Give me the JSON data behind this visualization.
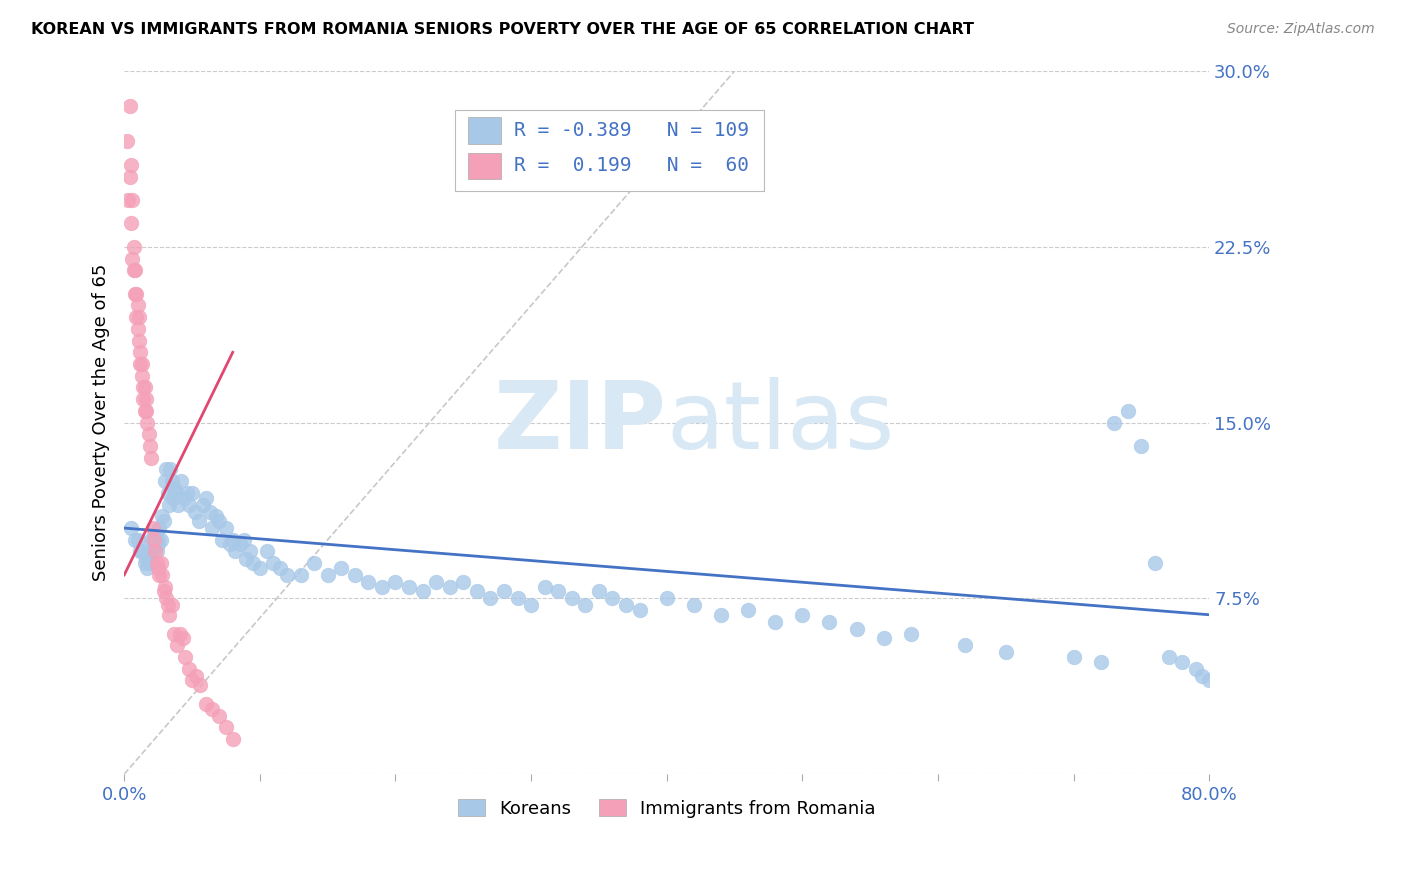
{
  "title": "KOREAN VS IMMIGRANTS FROM ROMANIA SENIORS POVERTY OVER THE AGE OF 65 CORRELATION CHART",
  "source": "Source: ZipAtlas.com",
  "ylabel": "Seniors Poverty Over the Age of 65",
  "xlim": [
    0.0,
    0.8
  ],
  "ylim": [
    0.0,
    0.3
  ],
  "xticks": [
    0.0,
    0.1,
    0.2,
    0.3,
    0.4,
    0.5,
    0.6,
    0.7,
    0.8
  ],
  "xticklabels": [
    "0.0%",
    "",
    "",
    "",
    "",
    "",
    "",
    "",
    "80.0%"
  ],
  "yticks": [
    0.0,
    0.075,
    0.15,
    0.225,
    0.3
  ],
  "yticklabels": [
    "",
    "7.5%",
    "15.0%",
    "22.5%",
    "30.0%"
  ],
  "korean_R": -0.389,
  "korean_N": 109,
  "romania_R": 0.199,
  "romania_N": 60,
  "korean_color": "#a8c8e8",
  "romania_color": "#f4a0b8",
  "korean_line_color": "#4472c4",
  "romania_line_color": "#e04870",
  "watermark_color": "#d8e8f4",
  "legend_label_korean": "Koreans",
  "legend_label_romania": "Immigrants from Romania",
  "korean_scatter_x": [
    0.005,
    0.008,
    0.01,
    0.012,
    0.013,
    0.015,
    0.016,
    0.017,
    0.018,
    0.019,
    0.02,
    0.02,
    0.021,
    0.022,
    0.023,
    0.024,
    0.025,
    0.025,
    0.026,
    0.027,
    0.028,
    0.029,
    0.03,
    0.031,
    0.032,
    0.033,
    0.034,
    0.035,
    0.036,
    0.037,
    0.038,
    0.04,
    0.042,
    0.044,
    0.046,
    0.048,
    0.05,
    0.052,
    0.055,
    0.058,
    0.06,
    0.063,
    0.065,
    0.068,
    0.07,
    0.072,
    0.075,
    0.078,
    0.08,
    0.082,
    0.085,
    0.088,
    0.09,
    0.093,
    0.095,
    0.1,
    0.105,
    0.11,
    0.115,
    0.12,
    0.13,
    0.14,
    0.15,
    0.16,
    0.17,
    0.18,
    0.19,
    0.2,
    0.21,
    0.22,
    0.23,
    0.24,
    0.25,
    0.26,
    0.27,
    0.28,
    0.29,
    0.3,
    0.31,
    0.32,
    0.33,
    0.34,
    0.35,
    0.36,
    0.37,
    0.38,
    0.4,
    0.42,
    0.44,
    0.46,
    0.48,
    0.5,
    0.52,
    0.54,
    0.56,
    0.58,
    0.62,
    0.65,
    0.7,
    0.72,
    0.73,
    0.74,
    0.75,
    0.76,
    0.77,
    0.78,
    0.79,
    0.795,
    0.8
  ],
  "korean_scatter_y": [
    0.105,
    0.1,
    0.1,
    0.095,
    0.095,
    0.09,
    0.092,
    0.088,
    0.093,
    0.09,
    0.095,
    0.1,
    0.1,
    0.102,
    0.098,
    0.095,
    0.1,
    0.098,
    0.105,
    0.1,
    0.11,
    0.108,
    0.125,
    0.13,
    0.12,
    0.115,
    0.13,
    0.125,
    0.118,
    0.122,
    0.12,
    0.115,
    0.125,
    0.118,
    0.12,
    0.115,
    0.12,
    0.112,
    0.108,
    0.115,
    0.118,
    0.112,
    0.105,
    0.11,
    0.108,
    0.1,
    0.105,
    0.098,
    0.1,
    0.095,
    0.098,
    0.1,
    0.092,
    0.095,
    0.09,
    0.088,
    0.095,
    0.09,
    0.088,
    0.085,
    0.085,
    0.09,
    0.085,
    0.088,
    0.085,
    0.082,
    0.08,
    0.082,
    0.08,
    0.078,
    0.082,
    0.08,
    0.082,
    0.078,
    0.075,
    0.078,
    0.075,
    0.072,
    0.08,
    0.078,
    0.075,
    0.072,
    0.078,
    0.075,
    0.072,
    0.07,
    0.075,
    0.072,
    0.068,
    0.07,
    0.065,
    0.068,
    0.065,
    0.062,
    0.058,
    0.06,
    0.055,
    0.052,
    0.05,
    0.048,
    0.15,
    0.155,
    0.14,
    0.09,
    0.05,
    0.048,
    0.045,
    0.042,
    0.04
  ],
  "romania_scatter_x": [
    0.002,
    0.003,
    0.004,
    0.004,
    0.005,
    0.005,
    0.006,
    0.006,
    0.007,
    0.007,
    0.008,
    0.008,
    0.009,
    0.009,
    0.01,
    0.01,
    0.011,
    0.011,
    0.012,
    0.012,
    0.013,
    0.013,
    0.014,
    0.014,
    0.015,
    0.015,
    0.016,
    0.016,
    0.017,
    0.018,
    0.019,
    0.02,
    0.021,
    0.022,
    0.023,
    0.024,
    0.025,
    0.026,
    0.027,
    0.028,
    0.029,
    0.03,
    0.031,
    0.032,
    0.033,
    0.035,
    0.037,
    0.039,
    0.041,
    0.043,
    0.045,
    0.048,
    0.05,
    0.053,
    0.056,
    0.06,
    0.065,
    0.07,
    0.075,
    0.08
  ],
  "romania_scatter_y": [
    0.27,
    0.245,
    0.285,
    0.255,
    0.26,
    0.235,
    0.245,
    0.22,
    0.215,
    0.225,
    0.215,
    0.205,
    0.205,
    0.195,
    0.2,
    0.19,
    0.185,
    0.195,
    0.18,
    0.175,
    0.17,
    0.175,
    0.165,
    0.16,
    0.165,
    0.155,
    0.155,
    0.16,
    0.15,
    0.145,
    0.14,
    0.135,
    0.105,
    0.1,
    0.095,
    0.09,
    0.088,
    0.085,
    0.09,
    0.085,
    0.078,
    0.08,
    0.075,
    0.072,
    0.068,
    0.072,
    0.06,
    0.055,
    0.06,
    0.058,
    0.05,
    0.045,
    0.04,
    0.042,
    0.038,
    0.03,
    0.028,
    0.025,
    0.02,
    0.015
  ],
  "korean_trend_x": [
    0.0,
    0.8
  ],
  "korean_trend_y": [
    0.105,
    0.068
  ],
  "romania_trend_x": [
    0.0,
    0.08
  ],
  "romania_trend_y": [
    0.085,
    0.18
  ],
  "diag_line_x": [
    0.0,
    0.45
  ],
  "diag_line_y": [
    0.0,
    0.3
  ]
}
